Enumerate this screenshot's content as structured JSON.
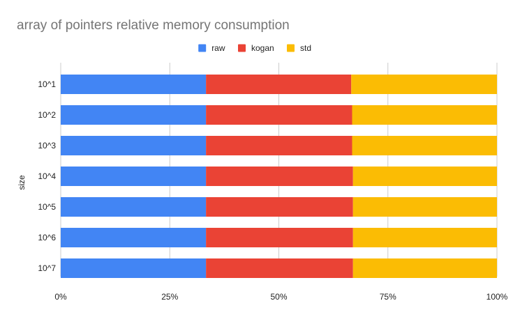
{
  "chart_data": {
    "type": "bar",
    "orientation": "horizontal",
    "stacked": "percent",
    "title": "array of pointers relative memory consumption",
    "ylabel": "size",
    "xlabel": "",
    "categories": [
      "10^1",
      "10^2",
      "10^3",
      "10^4",
      "10^5",
      "10^6",
      "10^7"
    ],
    "series": [
      {
        "name": "raw",
        "color": "#4285f4",
        "values": [
          33.3,
          33.3,
          33.3,
          33.3,
          33.3,
          33.3,
          33.3
        ]
      },
      {
        "name": "kogan",
        "color": "#ea4335",
        "values": [
          33.3,
          33.5,
          33.5,
          33.7,
          33.7,
          33.7,
          33.7
        ]
      },
      {
        "name": "std",
        "color": "#fbbc04",
        "values": [
          33.4,
          33.2,
          33.2,
          33.0,
          33.0,
          33.0,
          33.0
        ]
      }
    ],
    "xticks": [
      "0%",
      "25%",
      "50%",
      "75%",
      "100%"
    ],
    "xlim": [
      0,
      100
    ],
    "grid": true,
    "legend": "top-center"
  }
}
